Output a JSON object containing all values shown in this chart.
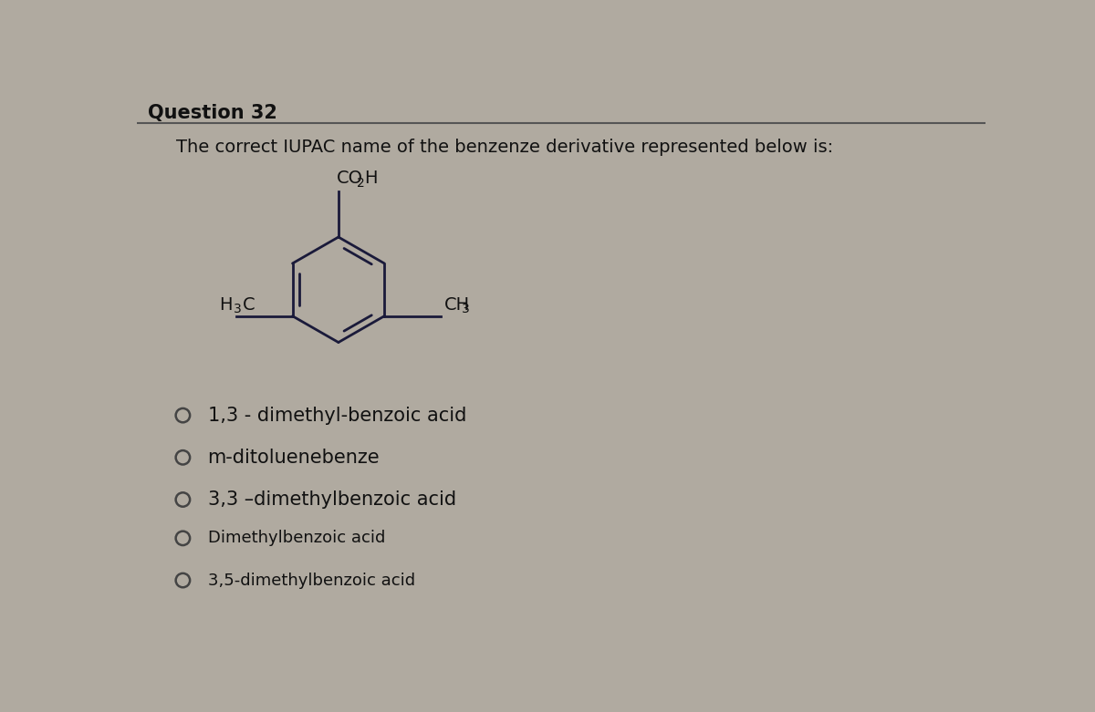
{
  "title": "Question 32",
  "question": "The correct IUPAC name of the benzenze derivative represented below is:",
  "options": [
    "1,3 - dimethyl-benzoic acid",
    "m-ditoluenebenze",
    "3,3 –dimethylbenzoic acid",
    "Dimethylbenzoic acid",
    "3,5-dimethylbenzoic acid"
  ],
  "bg_color": "#b0aaa0",
  "title_color": "#111111",
  "question_color": "#111111",
  "option_color": "#111111",
  "structure_color": "#1a1a3a",
  "label_color": "#111111",
  "title_fontsize": 15,
  "question_fontsize": 14,
  "option_fontsize": 15
}
